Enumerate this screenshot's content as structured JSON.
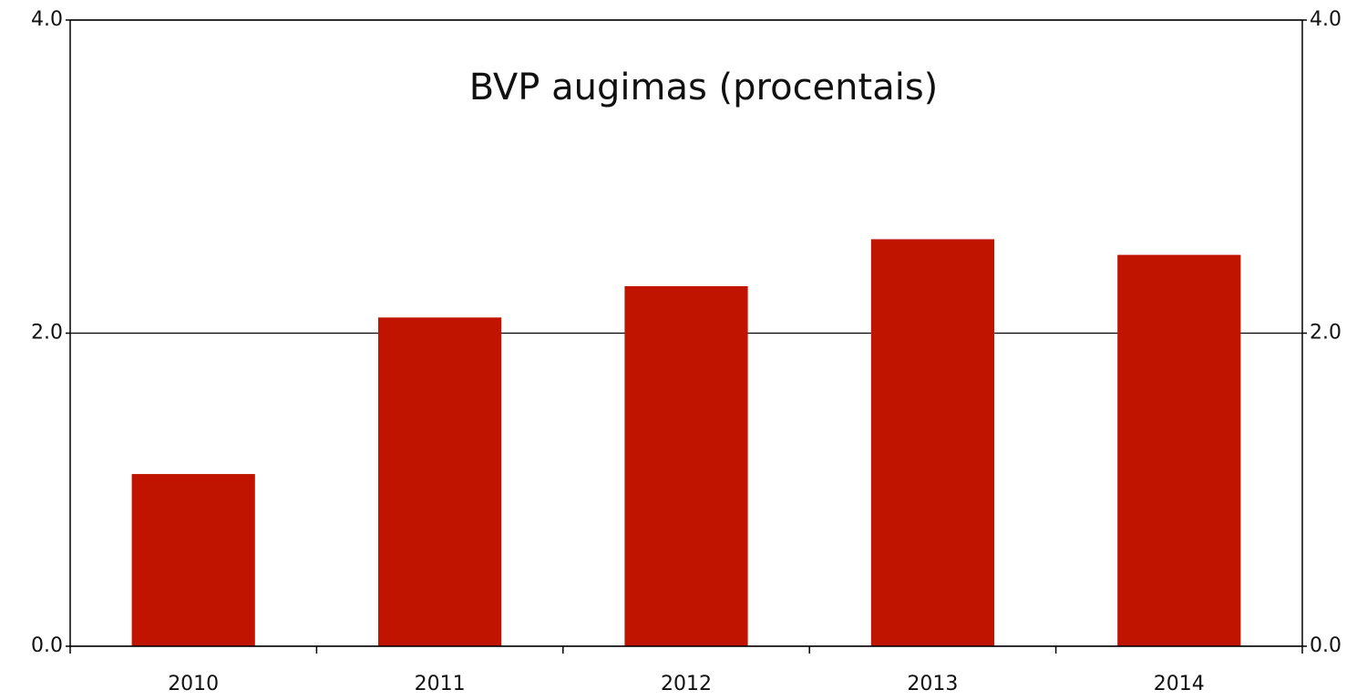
{
  "chart_data": {
    "type": "bar",
    "title": "BVP augimas (procentais)",
    "categories": [
      "2010",
      "2011",
      "2012",
      "2013",
      "2014"
    ],
    "values": [
      1.1,
      2.1,
      2.3,
      2.6,
      2.5
    ],
    "color": "#c01400",
    "ylim": [
      0,
      4
    ],
    "yticks": [
      {
        "value": 0,
        "label": "0.0"
      },
      {
        "value": 2,
        "label": "2.0"
      },
      {
        "value": 4,
        "label": "4.0"
      }
    ],
    "y2lim": [
      0,
      4
    ],
    "y2ticks": [
      {
        "value": 0,
        "label": "0.0"
      },
      {
        "value": 2,
        "label": "2.0"
      },
      {
        "value": 4,
        "label": "4.0"
      }
    ],
    "grid": true
  }
}
